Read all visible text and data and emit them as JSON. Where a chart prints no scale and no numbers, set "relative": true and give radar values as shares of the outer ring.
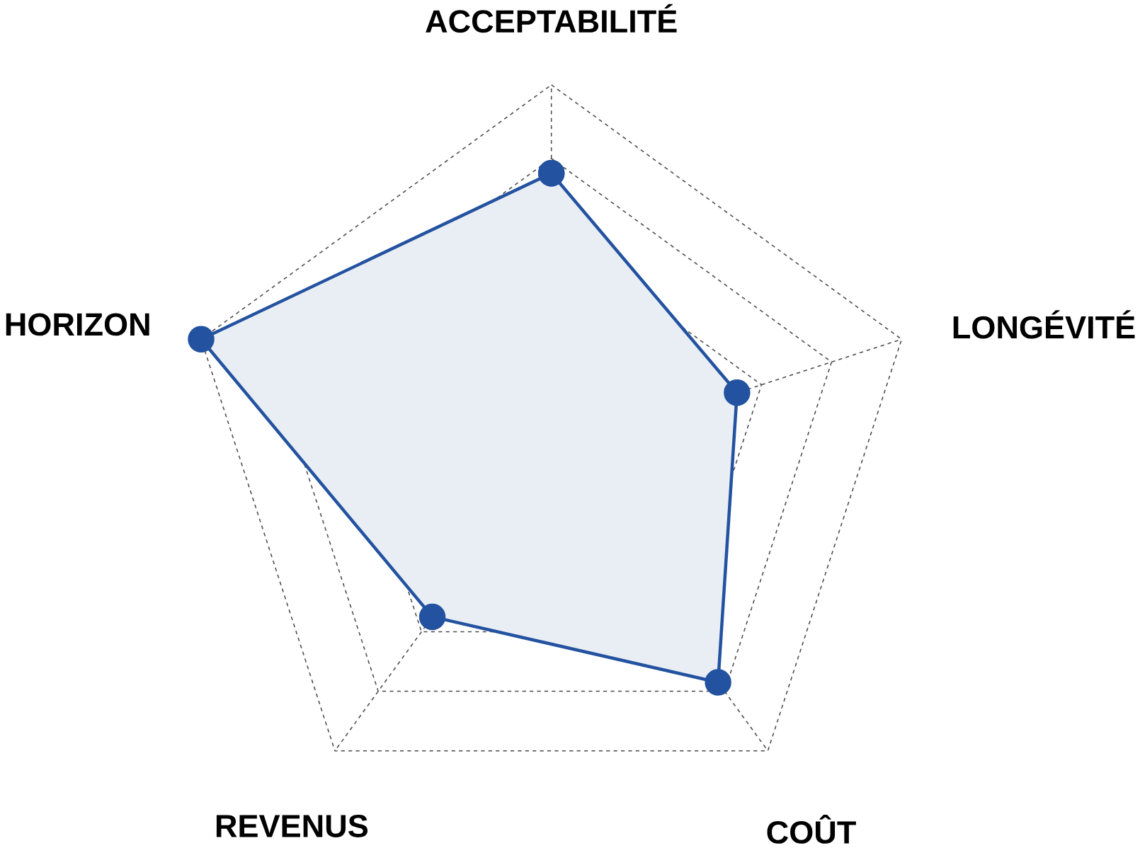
{
  "chart_data": {
    "type": "radar",
    "relative": true,
    "grid": true,
    "marker": "circle",
    "line_style": "solid",
    "categories": [
      "ACCEPTABILITÉ",
      "LONGÉVITÉ",
      "COÛT",
      "REVENUS",
      "HORIZON"
    ],
    "series": [
      {
        "color": "#2352a0",
        "values": [
          0.76,
          0.53,
          0.77,
          0.55,
          1.0
        ]
      }
    ]
  }
}
